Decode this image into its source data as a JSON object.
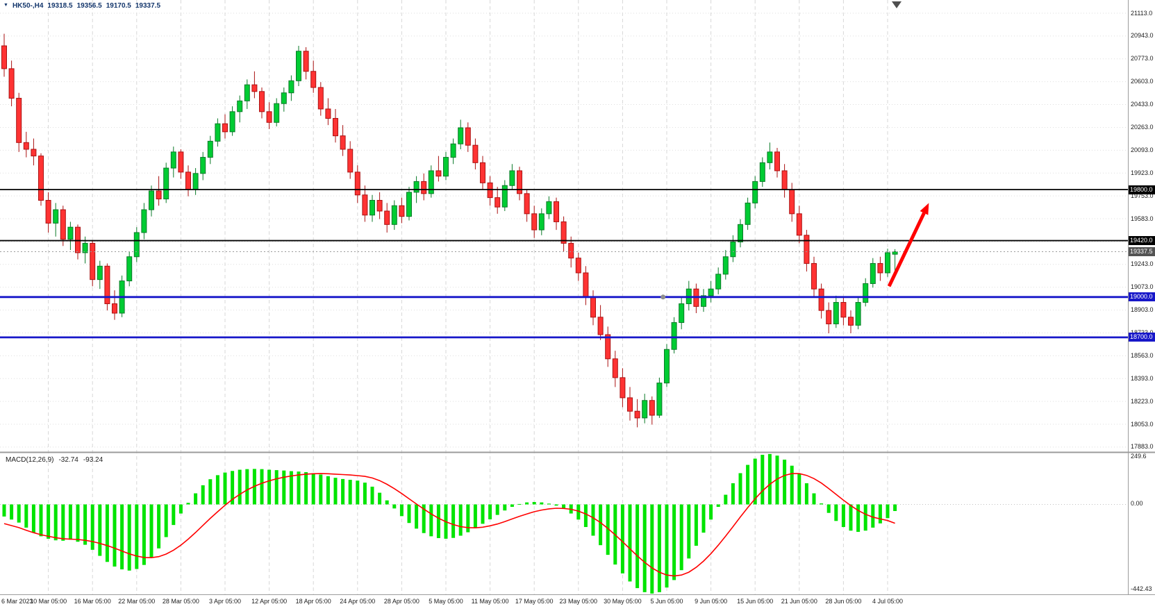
{
  "header": {
    "title": "HK50-,H4",
    "open": "19318.5",
    "high": "19356.5",
    "low": "19170.5",
    "close": "19337.5"
  },
  "colors": {
    "bull": "#00cc33",
    "bull_border": "#0a7a28",
    "bear": "#ff3333",
    "bear_border": "#aa1111",
    "macd_hist": "#00e400",
    "macd_signal": "#ff0000",
    "line_black": "#000000",
    "line_blue": "#1717c9",
    "badge_current": "#545454",
    "arrow": "#ff0000"
  },
  "chart_data": {
    "type": "candlestick",
    "symbol": "HK50-",
    "timeframe": "H4",
    "grid": true,
    "price_axis": {
      "min": 17840,
      "max": 21160,
      "ticks": [
        21113,
        20943,
        20773,
        20603,
        20433,
        20263,
        20093,
        19923,
        19753,
        19583,
        19413,
        19243,
        19073,
        18903,
        18733,
        18563,
        18393,
        18223,
        18053,
        17883
      ]
    },
    "x_axis": {
      "labels": [
        {
          "i": 0,
          "label": "6 Mar 2023"
        },
        {
          "i": 6,
          "label": "10 Mar 05:00"
        },
        {
          "i": 12,
          "label": "16 Mar 05:00"
        },
        {
          "i": 18,
          "label": "22 Mar 05:00"
        },
        {
          "i": 24,
          "label": "28 Mar 05:00"
        },
        {
          "i": 30,
          "label": "3 Apr 05:00"
        },
        {
          "i": 36,
          "label": "12 Apr 05:00"
        },
        {
          "i": 42,
          "label": "18 Apr 05:00"
        },
        {
          "i": 48,
          "label": "24 Apr 05:00"
        },
        {
          "i": 54,
          "label": "28 Apr 05:00"
        },
        {
          "i": 60,
          "label": "5 May 05:00"
        },
        {
          "i": 66,
          "label": "11 May 05:00"
        },
        {
          "i": 72,
          "label": "17 May 05:00"
        },
        {
          "i": 78,
          "label": "23 May 05:00"
        },
        {
          "i": 84,
          "label": "30 May 05:00"
        },
        {
          "i": 90,
          "label": "5 Jun 05:00"
        },
        {
          "i": 96,
          "label": "9 Jun 05:00"
        },
        {
          "i": 102,
          "label": "15 Jun 05:00"
        },
        {
          "i": 108,
          "label": "21 Jun 05:00"
        },
        {
          "i": 114,
          "label": "28 Jun 05:00"
        },
        {
          "i": 120,
          "label": "4 Jul 05:00"
        }
      ]
    },
    "candles": [
      [
        20870,
        20960,
        20640,
        20700
      ],
      [
        20700,
        20760,
        20420,
        20480
      ],
      [
        20480,
        20520,
        20080,
        20150
      ],
      [
        20150,
        20230,
        20040,
        20100
      ],
      [
        20100,
        20180,
        19980,
        20050
      ],
      [
        20050,
        20070,
        19680,
        19720
      ],
      [
        19720,
        19780,
        19480,
        19550
      ],
      [
        19550,
        19700,
        19450,
        19650
      ],
      [
        19650,
        19680,
        19380,
        19430
      ],
      [
        19430,
        19560,
        19350,
        19520
      ],
      [
        19520,
        19540,
        19280,
        19330
      ],
      [
        19330,
        19450,
        19250,
        19400
      ],
      [
        19400,
        19420,
        19080,
        19130
      ],
      [
        19130,
        19270,
        19060,
        19230
      ],
      [
        19230,
        19250,
        18900,
        18950
      ],
      [
        18950,
        19050,
        18830,
        18880
      ],
      [
        18880,
        19160,
        18850,
        19120
      ],
      [
        19120,
        19340,
        19080,
        19300
      ],
      [
        19300,
        19520,
        19260,
        19480
      ],
      [
        19480,
        19700,
        19430,
        19650
      ],
      [
        19650,
        19830,
        19600,
        19790
      ],
      [
        19790,
        19900,
        19680,
        19730
      ],
      [
        19730,
        20000,
        19700,
        19960
      ],
      [
        19960,
        20120,
        19890,
        20080
      ],
      [
        20080,
        20100,
        19880,
        19930
      ],
      [
        19930,
        19980,
        19750,
        19800
      ],
      [
        19800,
        19960,
        19760,
        19920
      ],
      [
        19920,
        20080,
        19870,
        20040
      ],
      [
        20040,
        20200,
        19990,
        20160
      ],
      [
        20160,
        20330,
        20120,
        20290
      ],
      [
        20290,
        20360,
        20180,
        20230
      ],
      [
        20230,
        20420,
        20200,
        20380
      ],
      [
        20380,
        20500,
        20300,
        20460
      ],
      [
        20460,
        20620,
        20400,
        20580
      ],
      [
        20580,
        20680,
        20480,
        20530
      ],
      [
        20530,
        20560,
        20330,
        20380
      ],
      [
        20380,
        20450,
        20250,
        20300
      ],
      [
        20300,
        20480,
        20270,
        20440
      ],
      [
        20440,
        20560,
        20380,
        20520
      ],
      [
        20520,
        20650,
        20460,
        20610
      ],
      [
        20610,
        20870,
        20570,
        20830
      ],
      [
        20830,
        20860,
        20620,
        20680
      ],
      [
        20680,
        20760,
        20520,
        20560
      ],
      [
        20560,
        20600,
        20350,
        20400
      ],
      [
        20400,
        20480,
        20280,
        20330
      ],
      [
        20330,
        20400,
        20150,
        20200
      ],
      [
        20200,
        20280,
        20050,
        20100
      ],
      [
        20100,
        20160,
        19880,
        19930
      ],
      [
        19930,
        19980,
        19700,
        19760
      ],
      [
        19760,
        19830,
        19560,
        19610
      ],
      [
        19610,
        19760,
        19560,
        19720
      ],
      [
        19720,
        19780,
        19580,
        19640
      ],
      [
        19640,
        19700,
        19480,
        19540
      ],
      [
        19540,
        19720,
        19500,
        19680
      ],
      [
        19680,
        19740,
        19550,
        19600
      ],
      [
        19600,
        19820,
        19570,
        19780
      ],
      [
        19780,
        19900,
        19700,
        19860
      ],
      [
        19860,
        19920,
        19720,
        19770
      ],
      [
        19770,
        19980,
        19740,
        19940
      ],
      [
        19940,
        20050,
        19860,
        19900
      ],
      [
        19900,
        20080,
        19870,
        20040
      ],
      [
        20040,
        20180,
        19990,
        20140
      ],
      [
        20140,
        20320,
        20100,
        20260
      ],
      [
        20260,
        20300,
        20080,
        20130
      ],
      [
        20130,
        20180,
        19950,
        20000
      ],
      [
        20000,
        20050,
        19800,
        19850
      ],
      [
        19850,
        19900,
        19680,
        19740
      ],
      [
        19740,
        19820,
        19620,
        19670
      ],
      [
        19670,
        19870,
        19640,
        19830
      ],
      [
        19830,
        19990,
        19800,
        19940
      ],
      [
        19940,
        19970,
        19720,
        19770
      ],
      [
        19770,
        19800,
        19560,
        19620
      ],
      [
        19620,
        19680,
        19440,
        19500
      ],
      [
        19500,
        19660,
        19460,
        19620
      ],
      [
        19620,
        19750,
        19580,
        19710
      ],
      [
        19710,
        19740,
        19500,
        19560
      ],
      [
        19560,
        19600,
        19340,
        19400
      ],
      [
        19400,
        19450,
        19220,
        19290
      ],
      [
        19290,
        19330,
        19120,
        19180
      ],
      [
        19180,
        19230,
        18940,
        19000
      ],
      [
        19000,
        19050,
        18790,
        18850
      ],
      [
        18850,
        18940,
        18680,
        18720
      ],
      [
        18720,
        18780,
        18480,
        18540
      ],
      [
        18540,
        18600,
        18330,
        18400
      ],
      [
        18400,
        18470,
        18180,
        18250
      ],
      [
        18250,
        18330,
        18080,
        18150
      ],
      [
        18150,
        18240,
        18030,
        18100
      ],
      [
        18100,
        18280,
        18060,
        18230
      ],
      [
        18230,
        18260,
        18050,
        18120
      ],
      [
        18120,
        18400,
        18100,
        18360
      ],
      [
        18360,
        18650,
        18330,
        18610
      ],
      [
        18610,
        18850,
        18580,
        18810
      ],
      [
        18810,
        19000,
        18760,
        18950
      ],
      [
        18950,
        19120,
        18900,
        19060
      ],
      [
        19060,
        19100,
        18880,
        18930
      ],
      [
        18930,
        19060,
        18890,
        19010
      ],
      [
        19010,
        19120,
        18960,
        19060
      ],
      [
        19060,
        19220,
        19020,
        19170
      ],
      [
        19170,
        19350,
        19130,
        19300
      ],
      [
        19300,
        19460,
        19260,
        19410
      ],
      [
        19410,
        19580,
        19370,
        19540
      ],
      [
        19540,
        19740,
        19500,
        19700
      ],
      [
        19700,
        19900,
        19660,
        19860
      ],
      [
        19860,
        20040,
        19820,
        20000
      ],
      [
        20000,
        20150,
        19950,
        20080
      ],
      [
        20080,
        20110,
        19890,
        19940
      ],
      [
        19940,
        19990,
        19740,
        19800
      ],
      [
        19800,
        19850,
        19560,
        19620
      ],
      [
        19620,
        19680,
        19400,
        19460
      ],
      [
        19460,
        19500,
        19190,
        19250
      ],
      [
        19250,
        19300,
        19000,
        19060
      ],
      [
        19060,
        19100,
        18840,
        18900
      ],
      [
        18900,
        18960,
        18730,
        18800
      ],
      [
        18800,
        19010,
        18770,
        18960
      ],
      [
        18960,
        19000,
        18790,
        18850
      ],
      [
        18850,
        18900,
        18730,
        18790
      ],
      [
        18790,
        19000,
        18760,
        18960
      ],
      [
        18960,
        19140,
        18930,
        19100
      ],
      [
        19100,
        19290,
        19070,
        19250
      ],
      [
        19250,
        19300,
        19120,
        19180
      ],
      [
        19180,
        19360,
        19150,
        19330
      ],
      [
        19318.5,
        19356.5,
        19170.5,
        19337.5
      ]
    ],
    "horizontal_lines": [
      {
        "price": 19800,
        "label": "19800.0",
        "color": "#000000",
        "width": 1.8
      },
      {
        "price": 19420,
        "label": "19420.0",
        "color": "#000000",
        "width": 1.8
      },
      {
        "price": 19000,
        "label": "19000.0",
        "color": "#1717c9",
        "width": 2.8
      },
      {
        "price": 18700,
        "label": "18700.0",
        "color": "#1717c9",
        "width": 2.8
      }
    ],
    "current_price": {
      "value": 19337.5,
      "label": "19337.5",
      "line_color": "#9a9a9a",
      "badge_color": "#545454"
    },
    "annotations": {
      "arrow": {
        "from_index": 120.2,
        "from_price": 19080,
        "to_index": 125.6,
        "to_price": 19700,
        "color": "#ff0000",
        "width": 5
      },
      "dot": {
        "index": 89.5,
        "price": 19000,
        "color": "#8f8f8f",
        "radius": 3.5
      }
    },
    "macd": {
      "name": "MACD(12,26,9)",
      "macd_value": "-32.74",
      "signal_value": "-93.24",
      "scale": {
        "top": "249.6",
        "zero": "0.00",
        "bottom": "-442.43"
      },
      "histogram": [
        -60,
        -75,
        -90,
        -115,
        -140,
        -158,
        -170,
        -178,
        -180,
        -175,
        -185,
        -200,
        -225,
        -255,
        -285,
        -308,
        -322,
        -328,
        -320,
        -300,
        -265,
        -218,
        -162,
        -102,
        -45,
        8,
        55,
        95,
        125,
        145,
        158,
        166,
        172,
        175,
        176,
        175,
        172,
        170,
        168,
        165,
        163,
        160,
        155,
        148,
        140,
        132,
        126,
        122,
        118,
        108,
        88,
        58,
        20,
        -20,
        -58,
        -92,
        -120,
        -142,
        -158,
        -167,
        -170,
        -166,
        -155,
        -138,
        -118,
        -96,
        -74,
        -52,
        -30,
        -12,
        2,
        10,
        12,
        10,
        4,
        -6,
        -22,
        -45,
        -75,
        -112,
        -155,
        -202,
        -250,
        -298,
        -342,
        -382,
        -415,
        -435,
        -442,
        -435,
        -412,
        -375,
        -326,
        -268,
        -205,
        -140,
        -75,
        -12,
        48,
        105,
        155,
        196,
        227,
        246,
        250,
        242,
        222,
        192,
        152,
        105,
        55,
        5,
        -42,
        -82,
        -112,
        -130,
        -136,
        -130,
        -115,
        -94,
        -68,
        -32.74
      ],
      "signal": [
        -95,
        -105,
        -115,
        -128,
        -140,
        -150,
        -158,
        -165,
        -170,
        -172,
        -174,
        -178,
        -184,
        -193,
        -204,
        -217,
        -231,
        -245,
        -256,
        -263,
        -264,
        -259,
        -246,
        -227,
        -202,
        -172,
        -139,
        -104,
        -69,
        -36,
        -4,
        25,
        50,
        72,
        90,
        105,
        117,
        127,
        135,
        141,
        146,
        150,
        152,
        153,
        152,
        150,
        148,
        146,
        143,
        139,
        131,
        118,
        100,
        78,
        54,
        28,
        2,
        -23,
        -47,
        -68,
        -86,
        -100,
        -110,
        -115,
        -116,
        -113,
        -106,
        -97,
        -85,
        -72,
        -59,
        -47,
        -36,
        -28,
        -22,
        -19,
        -20,
        -24,
        -33,
        -47,
        -66,
        -90,
        -119,
        -151,
        -185,
        -220,
        -255,
        -287,
        -315,
        -336,
        -350,
        -355,
        -350,
        -336,
        -312,
        -281,
        -244,
        -202,
        -157,
        -110,
        -62,
        -16,
        28,
        67,
        100,
        126,
        144,
        153,
        153,
        144,
        128,
        106,
        79,
        50,
        21,
        -6,
        -30,
        -49,
        -63,
        -72,
        -80,
        -93.24
      ]
    }
  }
}
